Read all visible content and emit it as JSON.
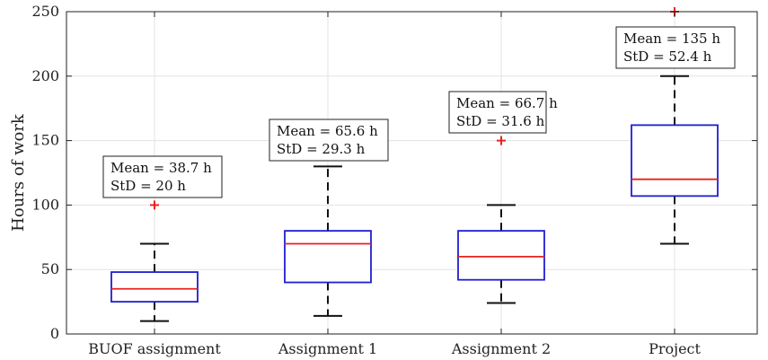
{
  "chart_data": {
    "type": "box",
    "ylabel": "Hours of work",
    "xlabel": "",
    "title": "",
    "ylim": [
      0,
      250
    ],
    "yticks": [
      0,
      50,
      100,
      150,
      200,
      250
    ],
    "grid": true,
    "colors": {
      "box": "#1f1fd0",
      "median": "#e8231f",
      "whisker": "#111111",
      "outlier": "#e8231f",
      "grid": "#e3e3e3"
    },
    "categories": [
      "BUOF assignment",
      "Assignment 1",
      "Assignment 2",
      "Project"
    ],
    "boxes": [
      {
        "category": "BUOF assignment",
        "whisker_low": 10,
        "q1": 25,
        "median": 35,
        "q3": 48,
        "whisker_high": 70,
        "outliers": [
          100
        ],
        "mean_label": "Mean = 38.7 h",
        "std_label": "StD = 20 h"
      },
      {
        "category": "Assignment 1",
        "whisker_low": 14,
        "q1": 40,
        "median": 70,
        "q3": 80,
        "whisker_high": 130,
        "outliers": [],
        "mean_label": "Mean = 65.6 h",
        "std_label": "StD = 29.3 h"
      },
      {
        "category": "Assignment 2",
        "whisker_low": 24,
        "q1": 42,
        "median": 60,
        "q3": 80,
        "whisker_high": 100,
        "outliers": [
          150
        ],
        "mean_label": "Mean = 66.7 h",
        "std_label": "StD = 31.6 h"
      },
      {
        "category": "Project",
        "whisker_low": 70,
        "q1": 107,
        "median": 120,
        "q3": 162,
        "whisker_high": 200,
        "outliers": [
          250
        ],
        "mean_label": "Mean = 135 h",
        "std_label": "StD = 52.4 h"
      }
    ]
  }
}
